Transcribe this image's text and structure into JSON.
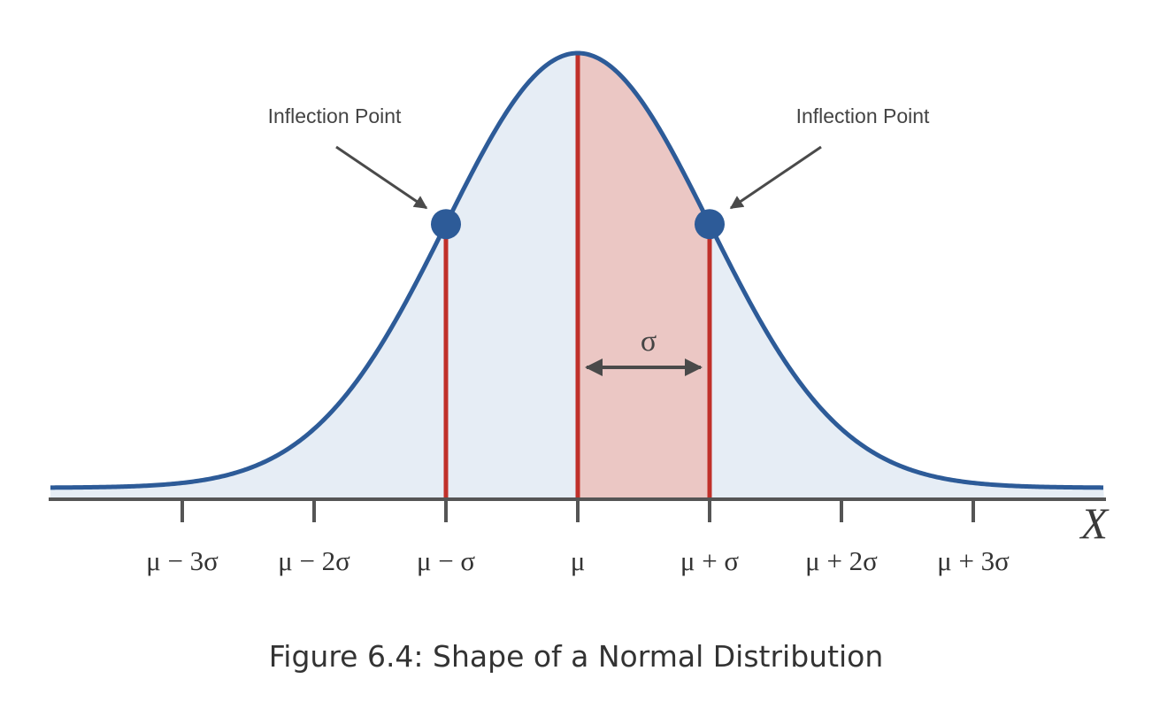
{
  "figure": {
    "annotations": {
      "left_inflection_label": "Inflection Point",
      "right_inflection_label": "Inflection Point",
      "sigma_label": "σ"
    },
    "axis_name": "X",
    "tick_labels": [
      "μ − 3σ",
      "μ − 2σ",
      "μ − σ",
      "μ",
      "μ + σ",
      "μ + 2σ",
      "μ + 3σ"
    ],
    "caption": "Figure 6.4: Shape of a Normal Distribution"
  },
  "colors": {
    "curve": "#2d5b98",
    "fill_light": "#e6edf5",
    "fill_sigma": "#ebc7c4",
    "red_line": "#c0302a",
    "axis": "#555555",
    "arrow": "#4a4a4a",
    "inflection_dot": "#2d5b98"
  }
}
